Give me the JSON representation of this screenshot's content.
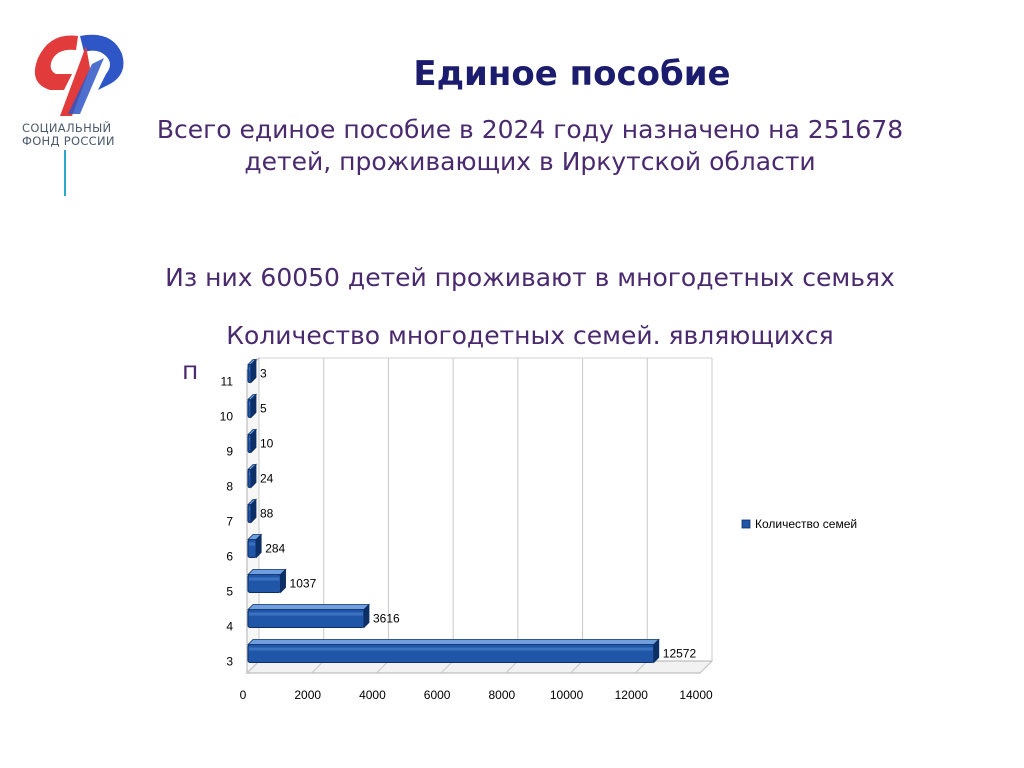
{
  "header": {
    "title": "Единое пособие",
    "logo_text_line1": "СОЦИАЛЬНЫЙ",
    "logo_text_line2": "ФОНД РОССИИ"
  },
  "main": {
    "subtitle_line1": "Всего единое пособие в 2024 году назначено на 251678",
    "subtitle_line2": "детей, проживающих в Иркутской области",
    "subtitle_line3": "Из них 60050 детей проживают в многодетных семьях",
    "subtitle_line4": "Количество многодетных семей. являющихся",
    "subtitle_cut": "п"
  },
  "colors": {
    "bar": "#1f56a8",
    "bar_dark": "#0d2f66",
    "bar_light": "#6f9fe0",
    "title": "#1c1c6e",
    "text": "#4a2a6e"
  },
  "chart_data": {
    "type": "bar",
    "orientation": "horizontal",
    "categories": [
      "3",
      "4",
      "5",
      "6",
      "7",
      "8",
      "9",
      "10",
      "11"
    ],
    "series": [
      {
        "name": "Количество семей",
        "values": [
          12572,
          3616,
          1037,
          284,
          88,
          24,
          10,
          5,
          3
        ]
      }
    ],
    "xlim": [
      0,
      14000
    ],
    "xticks": [
      0,
      2000,
      4000,
      6000,
      8000,
      10000,
      12000,
      14000
    ],
    "xtick_labels": [
      "0",
      "2000",
      "4000",
      "6000",
      "8000",
      "10000",
      "12000",
      "14000"
    ],
    "data_labels": [
      "12572",
      "3616",
      "1037",
      "284",
      "88",
      "24",
      "10",
      "5",
      "3"
    ],
    "legend_position": "right",
    "grid": true
  }
}
